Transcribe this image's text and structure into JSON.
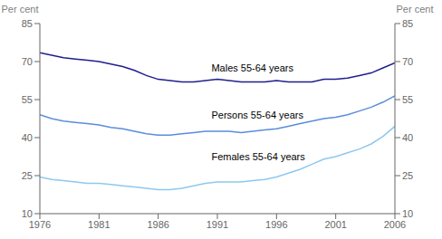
{
  "chart_data": {
    "type": "line",
    "x": [
      1976,
      1977,
      1978,
      1979,
      1980,
      1981,
      1982,
      1983,
      1984,
      1985,
      1986,
      1987,
      1988,
      1989,
      1990,
      1991,
      1992,
      1993,
      1994,
      1995,
      1996,
      1997,
      1998,
      1999,
      2000,
      2001,
      2002,
      2003,
      2004,
      2005,
      2006
    ],
    "series": [
      {
        "color": "#1f1f8f",
        "values": [
          73.5,
          72.5,
          71.5,
          71.0,
          70.5,
          70.0,
          69.0,
          68.0,
          66.5,
          64.5,
          63.0,
          62.5,
          62.0,
          62.0,
          62.5,
          63.0,
          62.5,
          62.0,
          62.0,
          62.0,
          62.5,
          62.0,
          62.0,
          62.0,
          63.0,
          63.0,
          63.5,
          64.5,
          65.5,
          67.5,
          69.5
        ]
      },
      {
        "color": "#5b8dd9",
        "values": [
          49.0,
          47.5,
          46.5,
          46.0,
          45.5,
          45.0,
          44.0,
          43.5,
          42.5,
          41.5,
          41.0,
          41.0,
          41.5,
          42.0,
          42.5,
          42.5,
          42.5,
          42.0,
          42.5,
          43.0,
          43.5,
          44.5,
          45.5,
          46.5,
          47.5,
          48.0,
          49.0,
          50.5,
          52.0,
          54.0,
          56.5
        ]
      },
      {
        "color": "#8ec8f0",
        "values": [
          24.5,
          23.5,
          23.0,
          22.5,
          22.0,
          22.0,
          21.5,
          21.0,
          20.5,
          20.0,
          19.5,
          19.5,
          20.0,
          21.0,
          22.0,
          22.5,
          22.5,
          22.5,
          23.0,
          23.5,
          24.5,
          26.0,
          27.5,
          29.5,
          31.5,
          32.5,
          34.0,
          35.5,
          37.5,
          40.5,
          44.5
        ]
      }
    ],
    "xlim": [
      1976,
      2006
    ],
    "xticks": [
      1976,
      1981,
      1986,
      1991,
      1996,
      2001,
      2006
    ],
    "ylim": [
      10,
      85
    ],
    "yticks": [
      10,
      25,
      40,
      55,
      70,
      85
    ],
    "y2lim": [
      10,
      85
    ],
    "y2ticks": [
      10,
      25,
      40,
      55,
      70,
      85
    ],
    "ylabel": "Per cent",
    "y2label": "Per cent",
    "annotations": [
      {
        "text": "Males 55-64 years",
        "x": 1990.5,
        "y": 66.0
      },
      {
        "text": "Persons 55-64 years",
        "x": 1990.5,
        "y": 47.5
      },
      {
        "text": "Females 55-64 years",
        "x": 1990.5,
        "y": 31.0
      }
    ],
    "grid": false
  }
}
